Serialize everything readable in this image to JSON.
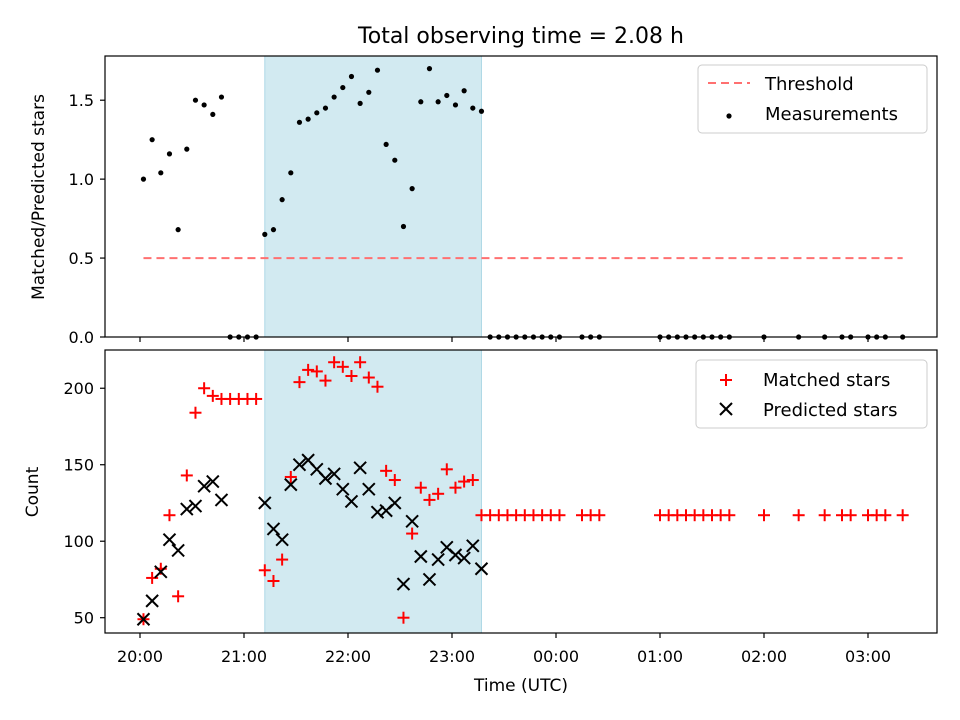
{
  "chart_data": {
    "title": "Total observing time = 2.08 h",
    "xlabel": "Time (UTC)",
    "x_ticks": [
      "20:00",
      "21:00",
      "22:00",
      "23:00",
      "00:00",
      "01:00",
      "02:00",
      "03:00"
    ],
    "highlight_span": {
      "start": "21:12",
      "end": "23:17",
      "color": "#add8e6"
    },
    "panels": [
      {
        "type": "scatter",
        "ylabel": "Matched/Predicted stars",
        "ylim": [
          0,
          1.78
        ],
        "y_ticks": [
          "0.0",
          "0.5",
          "1.0",
          "1.5"
        ],
        "legend_position": "top-right",
        "threshold": {
          "name": "Threshold",
          "value": 0.5,
          "x_range": [
            "20:02",
            "03:20"
          ],
          "color": "#ff7070"
        },
        "series": [
          {
            "name": "Measurements",
            "marker": "dot",
            "color": "#000000",
            "points": [
              [
                "20:02",
                1.0
              ],
              [
                "20:07",
                1.25
              ],
              [
                "20:12",
                1.04
              ],
              [
                "20:17",
                1.16
              ],
              [
                "20:22",
                0.68
              ],
              [
                "20:27",
                1.19
              ],
              [
                "20:32",
                1.5
              ],
              [
                "20:37",
                1.47
              ],
              [
                "20:42",
                1.41
              ],
              [
                "20:47",
                1.52
              ],
              [
                "20:52",
                0.0
              ],
              [
                "20:57",
                0.0
              ],
              [
                "21:02",
                0.0
              ],
              [
                "21:07",
                0.0
              ],
              [
                "21:12",
                0.65
              ],
              [
                "21:17",
                0.68
              ],
              [
                "21:22",
                0.87
              ],
              [
                "21:27",
                1.04
              ],
              [
                "21:32",
                1.36
              ],
              [
                "21:37",
                1.38
              ],
              [
                "21:42",
                1.42
              ],
              [
                "21:47",
                1.45
              ],
              [
                "21:52",
                1.52
              ],
              [
                "21:57",
                1.58
              ],
              [
                "22:02",
                1.65
              ],
              [
                "22:07",
                1.48
              ],
              [
                "22:12",
                1.55
              ],
              [
                "22:17",
                1.69
              ],
              [
                "22:22",
                1.22
              ],
              [
                "22:27",
                1.12
              ],
              [
                "22:32",
                0.7
              ],
              [
                "22:37",
                0.94
              ],
              [
                "22:42",
                1.49
              ],
              [
                "22:47",
                1.7
              ],
              [
                "22:52",
                1.49
              ],
              [
                "22:57",
                1.53
              ],
              [
                "23:02",
                1.47
              ],
              [
                "23:07",
                1.56
              ],
              [
                "23:12",
                1.45
              ],
              [
                "23:17",
                1.43
              ],
              [
                "23:22",
                0.0
              ],
              [
                "23:27",
                0.0
              ],
              [
                "23:32",
                0.0
              ],
              [
                "23:37",
                0.0
              ],
              [
                "23:42",
                0.0
              ],
              [
                "23:47",
                0.0
              ],
              [
                "23:52",
                0.0
              ],
              [
                "23:57",
                0.0
              ],
              [
                "00:02",
                0.0
              ],
              [
                "00:15",
                0.0
              ],
              [
                "00:20",
                0.0
              ],
              [
                "00:25",
                0.0
              ],
              [
                "01:00",
                0.0
              ],
              [
                "01:05",
                0.0
              ],
              [
                "01:10",
                0.0
              ],
              [
                "01:15",
                0.0
              ],
              [
                "01:20",
                0.0
              ],
              [
                "01:25",
                0.0
              ],
              [
                "01:30",
                0.0
              ],
              [
                "01:35",
                0.0
              ],
              [
                "01:40",
                0.0
              ],
              [
                "02:00",
                0.0
              ],
              [
                "02:20",
                0.0
              ],
              [
                "02:35",
                0.0
              ],
              [
                "02:45",
                0.0
              ],
              [
                "02:50",
                0.0
              ],
              [
                "03:00",
                0.0
              ],
              [
                "03:05",
                0.0
              ],
              [
                "03:10",
                0.0
              ],
              [
                "03:20",
                0.0
              ]
            ]
          }
        ]
      },
      {
        "type": "scatter",
        "ylabel": "Count",
        "ylim": [
          40,
          225
        ],
        "y_ticks": [
          "50",
          "100",
          "150",
          "200"
        ],
        "legend_position": "top-right",
        "series": [
          {
            "name": "Matched stars",
            "marker": "plus",
            "color": "#ff0000",
            "points": [
              [
                "20:02",
                49
              ],
              [
                "20:07",
                76
              ],
              [
                "20:12",
                82
              ],
              [
                "20:17",
                117
              ],
              [
                "20:22",
                64
              ],
              [
                "20:27",
                143
              ],
              [
                "20:32",
                184
              ],
              [
                "20:37",
                200
              ],
              [
                "20:42",
                195
              ],
              [
                "20:47",
                193
              ],
              [
                "20:52",
                193
              ],
              [
                "20:57",
                193
              ],
              [
                "21:02",
                193
              ],
              [
                "21:07",
                193
              ],
              [
                "21:12",
                81
              ],
              [
                "21:17",
                74
              ],
              [
                "21:22",
                88
              ],
              [
                "21:27",
                142
              ],
              [
                "21:32",
                204
              ],
              [
                "21:37",
                212
              ],
              [
                "21:42",
                211
              ],
              [
                "21:47",
                205
              ],
              [
                "21:52",
                217
              ],
              [
                "21:57",
                214
              ],
              [
                "22:02",
                208
              ],
              [
                "22:07",
                217
              ],
              [
                "22:12",
                207
              ],
              [
                "22:17",
                201
              ],
              [
                "22:22",
                146
              ],
              [
                "22:27",
                140
              ],
              [
                "22:32",
                50
              ],
              [
                "22:37",
                105
              ],
              [
                "22:42",
                135
              ],
              [
                "22:47",
                127
              ],
              [
                "22:52",
                131
              ],
              [
                "22:57",
                147
              ],
              [
                "23:02",
                135
              ],
              [
                "23:07",
                139
              ],
              [
                "23:12",
                140
              ],
              [
                "23:17",
                117
              ],
              [
                "23:22",
                117
              ],
              [
                "23:27",
                117
              ],
              [
                "23:32",
                117
              ],
              [
                "23:37",
                117
              ],
              [
                "23:42",
                117
              ],
              [
                "23:47",
                117
              ],
              [
                "23:52",
                117
              ],
              [
                "23:57",
                117
              ],
              [
                "00:02",
                117
              ],
              [
                "00:15",
                117
              ],
              [
                "00:20",
                117
              ],
              [
                "00:25",
                117
              ],
              [
                "01:00",
                117
              ],
              [
                "01:05",
                117
              ],
              [
                "01:10",
                117
              ],
              [
                "01:15",
                117
              ],
              [
                "01:20",
                117
              ],
              [
                "01:25",
                117
              ],
              [
                "01:30",
                117
              ],
              [
                "01:35",
                117
              ],
              [
                "01:40",
                117
              ],
              [
                "02:00",
                117
              ],
              [
                "02:20",
                117
              ],
              [
                "02:35",
                117
              ],
              [
                "02:45",
                117
              ],
              [
                "02:50",
                117
              ],
              [
                "03:00",
                117
              ],
              [
                "03:05",
                117
              ],
              [
                "03:10",
                117
              ],
              [
                "03:20",
                117
              ]
            ]
          },
          {
            "name": "Predicted stars",
            "marker": "cross",
            "color": "#000000",
            "points": [
              [
                "20:02",
                49
              ],
              [
                "20:07",
                61
              ],
              [
                "20:12",
                80
              ],
              [
                "20:17",
                101
              ],
              [
                "20:22",
                94
              ],
              [
                "20:27",
                121
              ],
              [
                "20:32",
                123
              ],
              [
                "20:37",
                136
              ],
              [
                "20:42",
                139
              ],
              [
                "20:47",
                127
              ],
              [
                "21:12",
                125
              ],
              [
                "21:17",
                108
              ],
              [
                "21:22",
                101
              ],
              [
                "21:27",
                137
              ],
              [
                "21:32",
                150
              ],
              [
                "21:37",
                153
              ],
              [
                "21:42",
                147
              ],
              [
                "21:47",
                141
              ],
              [
                "21:52",
                144
              ],
              [
                "21:57",
                134
              ],
              [
                "22:02",
                126
              ],
              [
                "22:07",
                148
              ],
              [
                "22:12",
                134
              ],
              [
                "22:17",
                119
              ],
              [
                "22:22",
                120
              ],
              [
                "22:27",
                125
              ],
              [
                "22:32",
                72
              ],
              [
                "22:37",
                113
              ],
              [
                "22:42",
                90
              ],
              [
                "22:47",
                75
              ],
              [
                "22:52",
                88
              ],
              [
                "22:57",
                96
              ],
              [
                "23:02",
                91
              ],
              [
                "23:07",
                89
              ],
              [
                "23:12",
                97
              ],
              [
                "23:17",
                82
              ]
            ]
          }
        ]
      }
    ]
  }
}
